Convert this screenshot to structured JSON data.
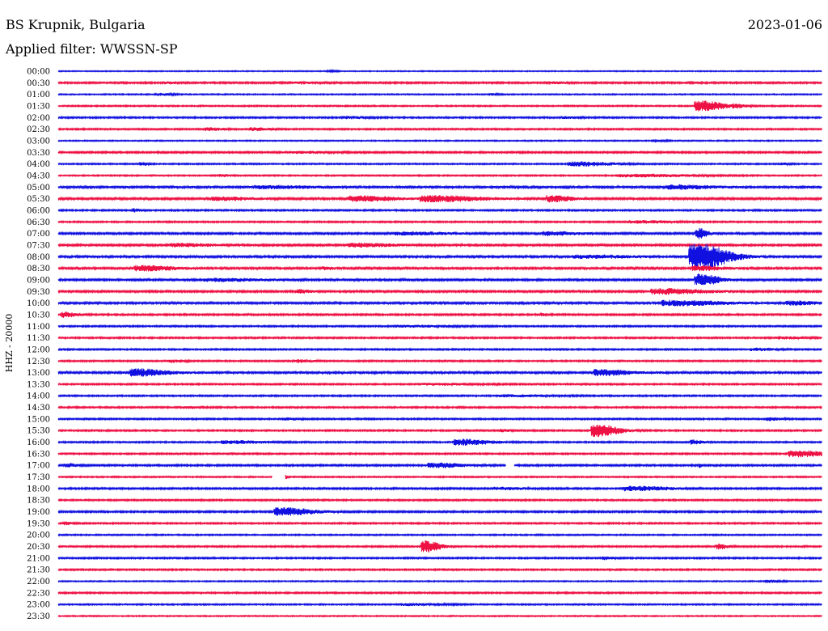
{
  "header": {
    "station": "BS Krupnik, Bulgaria",
    "date": "2023-01-06",
    "filter_label": "Applied filter: WWSSN-SP"
  },
  "chart_data": {
    "type": "line",
    "title": "BS Krupnik, Bulgaria",
    "ylabel": "HHZ - 20000",
    "colors": [
      "#1010e0",
      "#ee1144"
    ],
    "x_unit": "minutes",
    "x_range": [
      0,
      30
    ],
    "grid": false,
    "traces": [
      {
        "label": "00:00",
        "color_index": 0,
        "noise": 0.6,
        "events": [
          [
            10.7,
            0.6,
            0.3
          ]
        ]
      },
      {
        "label": "00:30",
        "color_index": 1,
        "noise": 1.0,
        "events": [
          [
            4.3,
            0.7,
            0.4
          ],
          [
            9.5,
            0.7,
            0.8
          ],
          [
            19.5,
            0.8,
            0.6
          ]
        ]
      },
      {
        "label": "01:00",
        "color_index": 0,
        "noise": 0.7,
        "events": [
          [
            4.0,
            1.2,
            0.6
          ],
          [
            17.0,
            1.0,
            0.3
          ]
        ]
      },
      {
        "label": "01:30",
        "color_index": 1,
        "noise": 0.8,
        "events": [
          [
            25.4,
            6.0,
            1.0
          ],
          [
            26.7,
            1.5,
            0.5
          ]
        ]
      },
      {
        "label": "02:00",
        "color_index": 0,
        "noise": 0.9,
        "events": [
          [
            11.5,
            1.2,
            0.8
          ],
          [
            20.0,
            1.0,
            0.6
          ]
        ]
      },
      {
        "label": "02:30",
        "color_index": 1,
        "noise": 0.9,
        "events": [
          [
            6.0,
            1.5,
            0.6
          ],
          [
            7.8,
            1.6,
            0.7
          ]
        ]
      },
      {
        "label": "03:00",
        "color_index": 0,
        "noise": 0.7,
        "events": [
          [
            23.5,
            0.8,
            0.5
          ]
        ]
      },
      {
        "label": "03:30",
        "color_index": 1,
        "noise": 1.0,
        "events": [
          [
            9.5,
            0.9,
            1.0
          ]
        ]
      },
      {
        "label": "04:00",
        "color_index": 0,
        "noise": 0.8,
        "events": [
          [
            3.3,
            1.8,
            0.3
          ],
          [
            20.6,
            2.4,
            1.5
          ],
          [
            28.5,
            1.0,
            0.3
          ]
        ]
      },
      {
        "label": "04:30",
        "color_index": 1,
        "noise": 0.8,
        "events": [
          [
            23.0,
            1.5,
            2.5
          ],
          [
            6.5,
            1.2,
            0.4
          ]
        ]
      },
      {
        "label": "05:00",
        "color_index": 0,
        "noise": 1.3,
        "events": [
          [
            24.5,
            2.2,
            1.5
          ],
          [
            8.5,
            1.4,
            2.0
          ]
        ]
      },
      {
        "label": "05:30",
        "color_index": 1,
        "noise": 1.2,
        "events": [
          [
            12.0,
            3.0,
            1.5
          ],
          [
            15.0,
            3.5,
            2.0
          ],
          [
            19.5,
            3.5,
            0.8
          ],
          [
            6.5,
            1.8,
            1.2
          ]
        ]
      },
      {
        "label": "06:00",
        "color_index": 0,
        "noise": 0.9,
        "events": [
          [
            3.0,
            1.8,
            0.3
          ]
        ]
      },
      {
        "label": "06:30",
        "color_index": 1,
        "noise": 0.9,
        "events": [
          [
            23.0,
            1.4,
            1.5
          ]
        ]
      },
      {
        "label": "07:00",
        "color_index": 0,
        "noise": 1.1,
        "events": [
          [
            19.5,
            2.0,
            1.2
          ],
          [
            14.0,
            1.5,
            2.0
          ],
          [
            25.2,
            6.0,
            0.4
          ]
        ]
      },
      {
        "label": "07:30",
        "color_index": 1,
        "noise": 1.1,
        "events": [
          [
            12.0,
            2.0,
            1.5
          ],
          [
            5.0,
            1.6,
            1.5
          ]
        ]
      },
      {
        "label": "08:00",
        "color_index": 0,
        "noise": 1.2,
        "events": [
          [
            25.3,
            15.0,
            1.3
          ],
          [
            21.0,
            1.6,
            2.0
          ]
        ]
      },
      {
        "label": "08:30",
        "color_index": 1,
        "noise": 1.2,
        "events": [
          [
            3.5,
            3.0,
            1.3
          ],
          [
            25.3,
            2.5,
            1.0
          ],
          [
            10.5,
            1.5,
            0.4
          ]
        ]
      },
      {
        "label": "09:00",
        "color_index": 0,
        "noise": 1.1,
        "events": [
          [
            25.3,
            7.0,
            0.8
          ],
          [
            6.5,
            1.5,
            2.0
          ]
        ]
      },
      {
        "label": "09:30",
        "color_index": 1,
        "noise": 1.1,
        "events": [
          [
            24.0,
            3.0,
            1.8
          ],
          [
            9.5,
            1.8,
            0.5
          ]
        ]
      },
      {
        "label": "10:00",
        "color_index": 0,
        "noise": 1.2,
        "events": [
          [
            24.5,
            2.8,
            2.0
          ],
          [
            29.0,
            2.0,
            1.0
          ]
        ]
      },
      {
        "label": "10:30",
        "color_index": 1,
        "noise": 1.0,
        "events": [
          [
            0.3,
            3.0,
            0.5
          ],
          [
            19.0,
            2.0,
            0.1
          ]
        ]
      },
      {
        "label": "11:00",
        "color_index": 0,
        "noise": 0.9,
        "events": [
          [
            14.0,
            1.0,
            2.0
          ]
        ]
      },
      {
        "label": "11:30",
        "color_index": 1,
        "noise": 0.9,
        "events": [
          [
            28.5,
            1.2,
            0.8
          ]
        ]
      },
      {
        "label": "12:00",
        "color_index": 0,
        "noise": 0.9,
        "events": [
          [
            27.5,
            1.3,
            0.8
          ]
        ]
      },
      {
        "label": "12:30",
        "color_index": 1,
        "noise": 0.9,
        "events": [
          [
            9.5,
            1.6,
            0.6
          ],
          [
            4.5,
            1.3,
            0.5
          ]
        ]
      },
      {
        "label": "13:00",
        "color_index": 0,
        "noise": 1.3,
        "events": [
          [
            3.3,
            4.0,
            1.2
          ],
          [
            21.5,
            3.2,
            1.2
          ]
        ]
      },
      {
        "label": "13:30",
        "color_index": 1,
        "noise": 0.9,
        "events": [
          [
            15.0,
            0.9,
            2.0
          ]
        ]
      },
      {
        "label": "14:00",
        "color_index": 0,
        "noise": 0.9,
        "events": [
          [
            18.0,
            0.9,
            2.0
          ]
        ]
      },
      {
        "label": "14:30",
        "color_index": 1,
        "noise": 0.9,
        "events": [
          [
            5.0,
            1.1,
            0.8
          ]
        ]
      },
      {
        "label": "15:00",
        "color_index": 0,
        "noise": 0.9,
        "events": [
          [
            28.0,
            1.5,
            0.5
          ],
          [
            9.0,
            1.2,
            0.5
          ]
        ]
      },
      {
        "label": "15:30",
        "color_index": 1,
        "noise": 0.9,
        "events": [
          [
            21.3,
            7.0,
            0.9
          ],
          [
            17.5,
            1.4,
            0.3
          ]
        ]
      },
      {
        "label": "16:00",
        "color_index": 0,
        "noise": 0.9,
        "events": [
          [
            16.0,
            3.5,
            1.2
          ],
          [
            25.0,
            2.5,
            0.4
          ],
          [
            7.0,
            1.6,
            1.5
          ]
        ]
      },
      {
        "label": "16:30",
        "color_index": 1,
        "noise": 0.9,
        "events": [
          [
            29.2,
            3.5,
            1.3
          ]
        ]
      },
      {
        "label": "17:00",
        "color_index": 0,
        "noise": 1.0,
        "events": [
          [
            15.0,
            2.5,
            1.2
          ],
          [
            0.4,
            2.0,
            0.4
          ],
          [
            25.2,
            2.2,
            0.1
          ]
        ]
      },
      {
        "label": "17:30",
        "color_index": 1,
        "noise": 0.8,
        "events": [
          [
            8.9,
            4.0,
            0.1
          ]
        ]
      },
      {
        "label": "18:00",
        "color_index": 0,
        "noise": 1.0,
        "events": [
          [
            22.8,
            2.5,
            1.5
          ],
          [
            17.5,
            1.3,
            1.0
          ]
        ]
      },
      {
        "label": "18:30",
        "color_index": 1,
        "noise": 0.9,
        "events": []
      },
      {
        "label": "19:00",
        "color_index": 0,
        "noise": 1.0,
        "events": [
          [
            9.0,
            4.5,
            1.3
          ]
        ]
      },
      {
        "label": "19:30",
        "color_index": 1,
        "noise": 0.9,
        "events": [
          [
            0.3,
            1.5,
            0.3
          ]
        ]
      },
      {
        "label": "20:00",
        "color_index": 0,
        "noise": 0.8,
        "events": []
      },
      {
        "label": "20:30",
        "color_index": 1,
        "noise": 0.9,
        "events": [
          [
            14.5,
            7.0,
            0.6
          ],
          [
            26.0,
            3.0,
            0.4
          ]
        ]
      },
      {
        "label": "21:00",
        "color_index": 0,
        "noise": 0.9,
        "events": [
          [
            21.5,
            1.6,
            0.3
          ]
        ]
      },
      {
        "label": "21:30",
        "color_index": 1,
        "noise": 0.9,
        "events": []
      },
      {
        "label": "22:00",
        "color_index": 0,
        "noise": 0.7,
        "events": [
          [
            28.0,
            1.4,
            0.5
          ]
        ]
      },
      {
        "label": "22:30",
        "color_index": 1,
        "noise": 0.9,
        "events": []
      },
      {
        "label": "23:00",
        "color_index": 0,
        "noise": 0.8,
        "events": [
          [
            14.0,
            1.1,
            1.5
          ]
        ]
      },
      {
        "label": "23:30",
        "color_index": 1,
        "noise": 0.7,
        "events": []
      }
    ],
    "gaps": [
      {
        "trace": "17:00",
        "x_range": [
          17.6,
          17.9
        ]
      },
      {
        "trace": "17:30",
        "x_range": [
          8.4,
          8.9
        ]
      }
    ]
  }
}
